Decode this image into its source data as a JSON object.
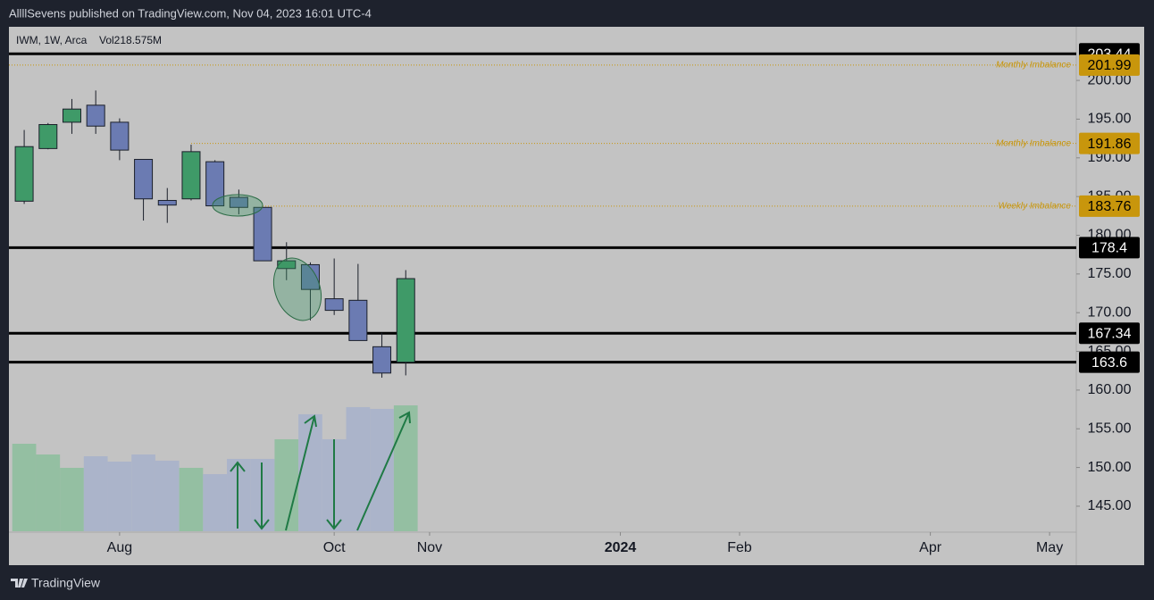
{
  "header": {
    "text": "AllllSevens published on TradingView.com, Nov 04, 2023 16:01 UTC-4"
  },
  "footer": {
    "brand": "TradingView"
  },
  "chart_data": {
    "type": "candlestick",
    "legend": {
      "symbol": "IWM, 1W, Arca",
      "volume": "Vol218.575M"
    },
    "up_color": "#3f9a68",
    "down_color": "#6b7bb2",
    "volume_up_color": "#8fbf9e",
    "volume_down_color": "#a8b2cb",
    "x": [
      0,
      1,
      2,
      3,
      4,
      5,
      6,
      7,
      8,
      9,
      10,
      11,
      12,
      13,
      14,
      15,
      16
    ],
    "open": [
      184.4,
      191.2,
      194.6,
      196.8,
      194.6,
      189.8,
      184.5,
      184.7,
      189.5,
      184.9,
      183.6,
      175.7,
      176.2,
      171.8,
      171.6,
      165.6,
      163.6
    ],
    "high": [
      193.6,
      194.5,
      197.6,
      198.7,
      195.1,
      189.8,
      186.1,
      191.7,
      189.7,
      185.9,
      183.6,
      179.1,
      176.5,
      177.0,
      176.3,
      167.4,
      175.5
    ],
    "low": [
      184.05,
      191.1,
      193.1,
      193.1,
      189.7,
      181.9,
      181.6,
      184.5,
      183.8,
      182.7,
      176.7,
      174.2,
      169.0,
      169.7,
      166.4,
      161.6,
      161.9
    ],
    "close": [
      191.45,
      194.3,
      196.3,
      194.1,
      191.0,
      184.7,
      183.9,
      190.8,
      183.8,
      183.6,
      176.7,
      176.7,
      173.0,
      170.3,
      166.4,
      162.2,
      174.4
    ],
    "volume": [
      151.9,
      133.3,
      110.1,
      130.2,
      120.9,
      133.3,
      122.5,
      110.1,
      99.2,
      125.6,
      125.6,
      159.7,
      203.1,
      159.7,
      215.5,
      212.4,
      218.575
    ],
    "xlim": [
      -0.64,
      44.12
    ],
    "xticks": [
      {
        "value": 4,
        "label": "Aug"
      },
      {
        "value": 13,
        "label": "Oct"
      },
      {
        "value": 17,
        "label": "Nov"
      },
      {
        "value": 25,
        "label": "2024"
      },
      {
        "value": 30,
        "label": "Feb"
      },
      {
        "value": 38,
        "label": "Apr"
      },
      {
        "value": 43,
        "label": "May"
      }
    ],
    "ylim": [
      141.65,
      206.93
    ],
    "yticks": [
      {
        "value": 200,
        "label": "200.00"
      },
      {
        "value": 195,
        "label": "195.00"
      },
      {
        "value": 190,
        "label": "190.00"
      },
      {
        "value": 185,
        "label": "185.00"
      },
      {
        "value": 180,
        "label": "180.00"
      },
      {
        "value": 175,
        "label": "175.00"
      },
      {
        "value": 170,
        "label": "170.00"
      },
      {
        "value": 165,
        "label": "165.00"
      },
      {
        "value": 160,
        "label": "160.00"
      },
      {
        "value": 155,
        "label": "155.00"
      },
      {
        "value": 150,
        "label": "150.00"
      },
      {
        "value": 145,
        "label": "145.00"
      }
    ],
    "levels": [
      {
        "value": 203.44,
        "color": "#000000",
        "style": "solid"
      },
      {
        "value": 201.99,
        "name": "Monthly Imbalance",
        "color": "#c8960c",
        "style": "dotted"
      },
      {
        "value": 191.86,
        "name": "Monthly Imbalance",
        "color": "#c8960c",
        "style": "dotted",
        "from_x": 7
      },
      {
        "value": 183.76,
        "name": "Weekly Imbalance",
        "color": "#c8960c",
        "style": "dotted",
        "from_x": 10
      },
      {
        "value": 178.4,
        "color": "#000000",
        "style": "solid"
      },
      {
        "value": 167.34,
        "color": "#000000",
        "style": "solid"
      },
      {
        "value": 163.6,
        "color": "#000000",
        "style": "solid"
      }
    ]
  }
}
